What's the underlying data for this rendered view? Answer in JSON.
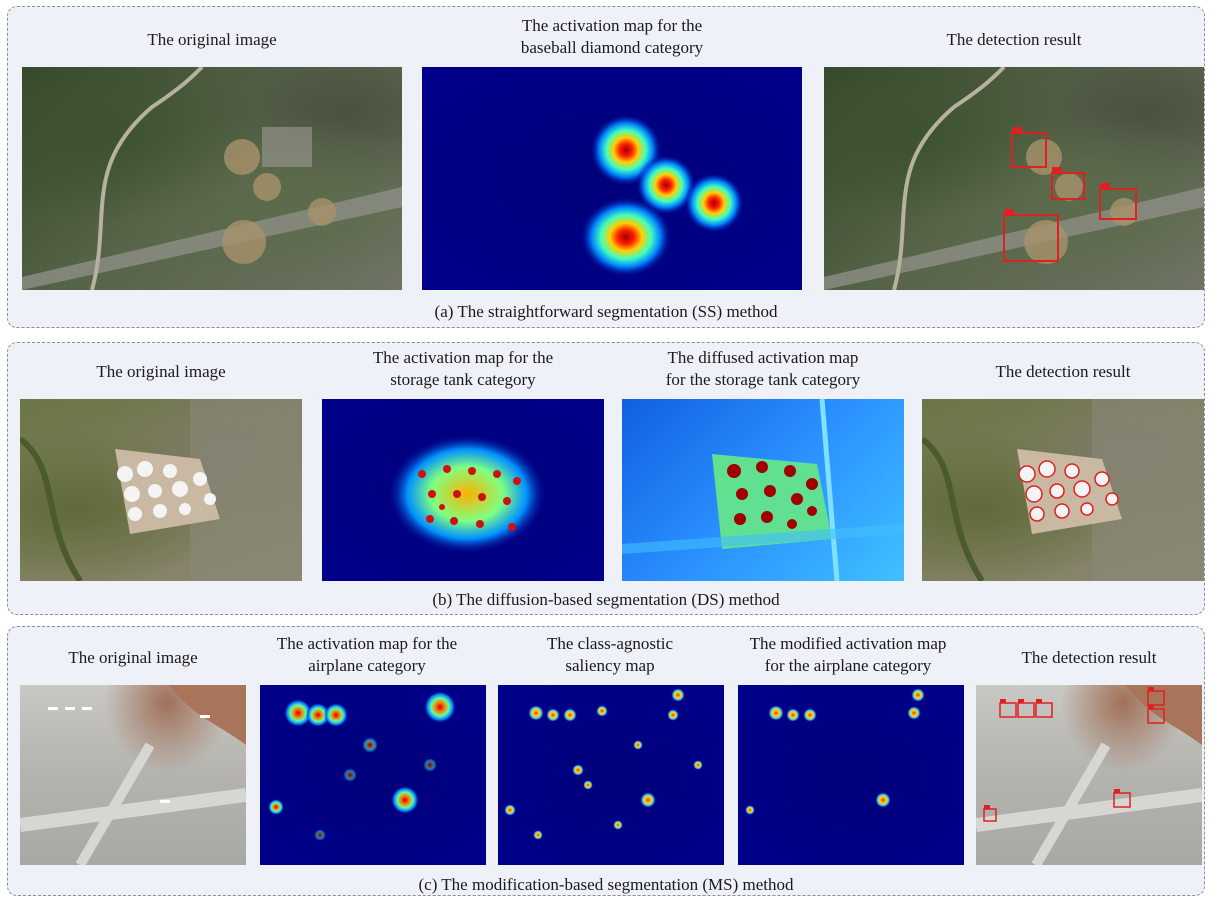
{
  "panels": [
    {
      "caption": "(a) The straightforward segmentation (SS) method",
      "titles": {
        "original": [
          "The original image"
        ],
        "activation": [
          "The activation map for the",
          "baseball diamond category"
        ],
        "detection": [
          "The detection result"
        ]
      }
    },
    {
      "caption": "(b) The diffusion-based segmentation (DS) method",
      "titles": {
        "original": [
          "The original image"
        ],
        "activation": [
          "The activation map for the",
          "storage tank category"
        ],
        "diffused": [
          "The diffused activation map",
          "for the storage tank category"
        ],
        "detection": [
          "The detection result"
        ]
      }
    },
    {
      "caption": "(c) The modification-based segmentation (MS) method",
      "titles": {
        "original": [
          "The original image"
        ],
        "activation": [
          "The activation map for the",
          "airplane category"
        ],
        "saliency": [
          "The class-agnostic",
          "saliency map"
        ],
        "modified": [
          "The modified activation map",
          "for the airplane category"
        ],
        "detection": [
          "The detection result"
        ]
      }
    }
  ],
  "colors": {
    "panel_bg": "#eef1f8",
    "jet_low": "#00008b",
    "jet_high": "#a00000",
    "detection_box": "#e02020"
  }
}
